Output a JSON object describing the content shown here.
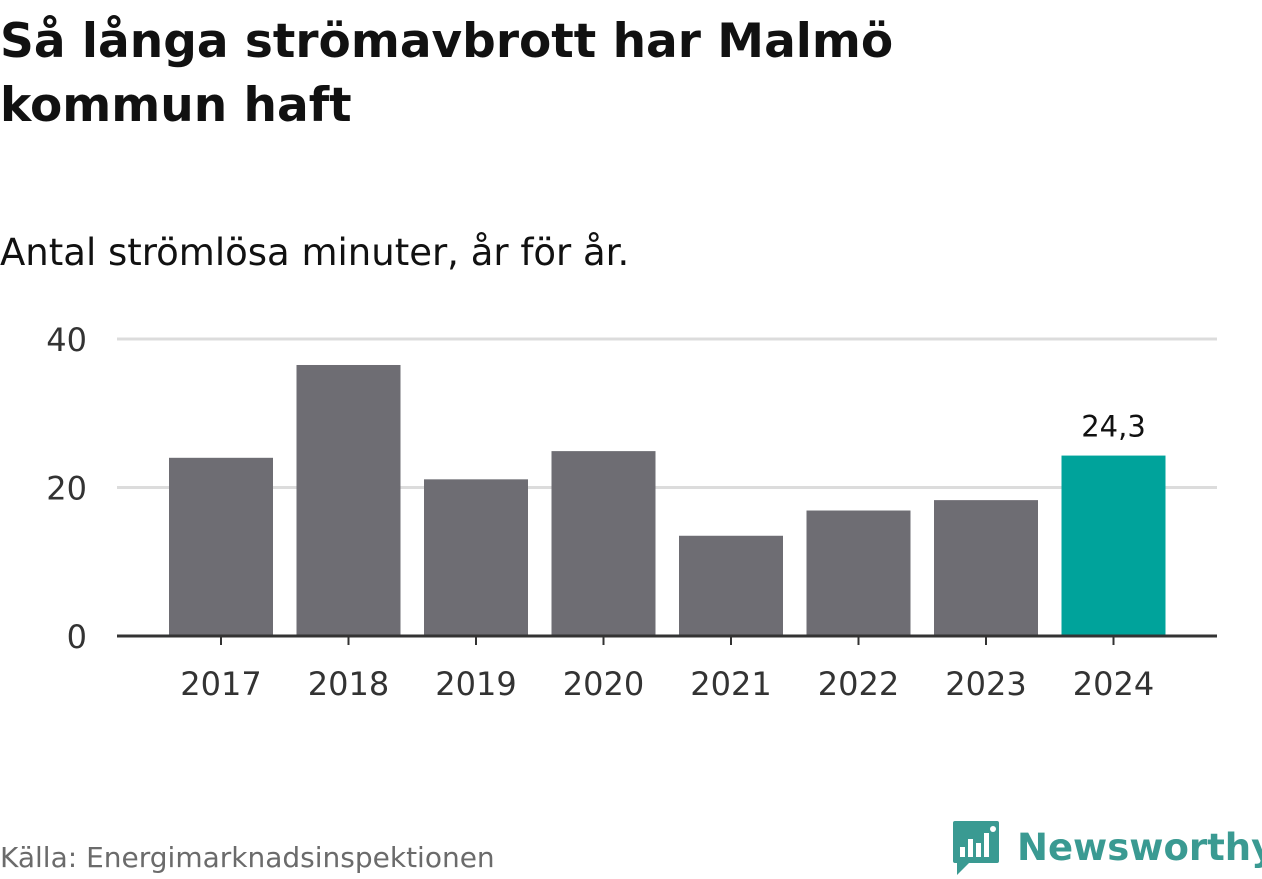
{
  "title": "Så långa strömavbrott har Malmö kommun haft",
  "subtitle": "Antal strömlösa minuter, år för år.",
  "source": "Källa: Energimarknadsinspektionen",
  "brand": {
    "name": "Newsworthy",
    "logo_icon": "bar-chart-speech-bubble-icon"
  },
  "colors": {
    "bar": "#6e6d73",
    "highlight": "#00a39b",
    "grid": "#dcdcdc",
    "axis": "#333333",
    "brand": "#3a9a92"
  },
  "chart_data": {
    "type": "bar",
    "title": "Så långa strömavbrott har Malmö kommun haft",
    "subtitle": "Antal strömlösa minuter, år för år.",
    "xlabel": "",
    "ylabel": "",
    "categories": [
      "2017",
      "2018",
      "2019",
      "2020",
      "2021",
      "2022",
      "2023",
      "2024"
    ],
    "values": [
      24.0,
      36.5,
      21.1,
      24.9,
      13.5,
      16.9,
      18.3,
      24.3
    ],
    "highlight_index": 7,
    "data_labels": [
      {
        "index": 7,
        "text": "24,3"
      }
    ],
    "ylim": [
      0,
      40
    ],
    "yticks": [
      0,
      20,
      40
    ],
    "grid": true
  }
}
